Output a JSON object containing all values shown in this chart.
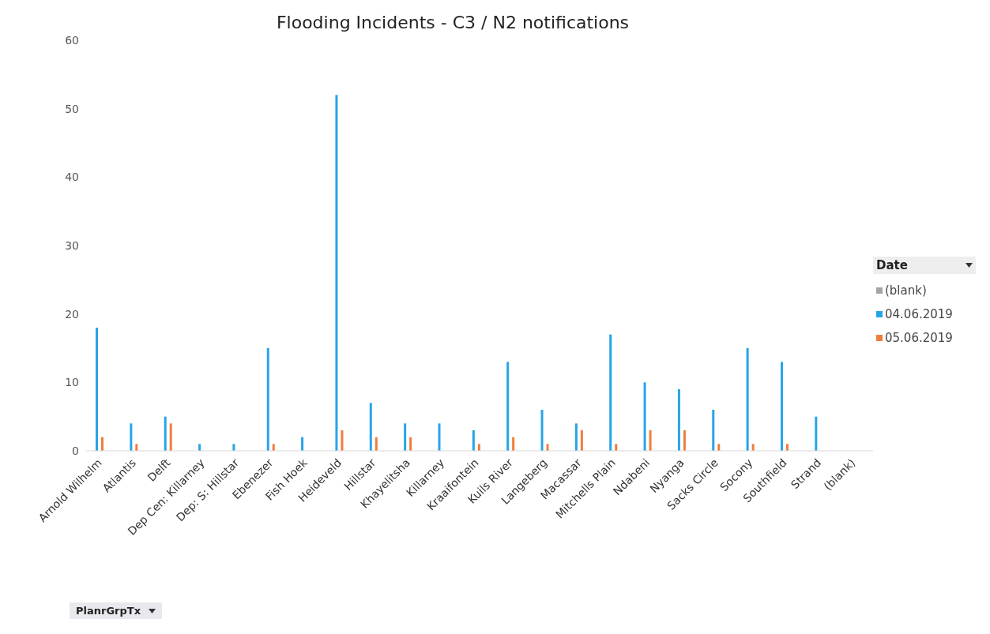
{
  "chart_data": {
    "type": "bar",
    "title": "Flooding Incidents - C3 / N2 notifications",
    "categories": [
      "Arnold Wilhelm",
      "Atlantis",
      "Delft",
      "Dep Cen: Killarney",
      "Dep: S: Hillstar",
      "Ebenezer",
      "Fish Hoek",
      "Heideveld",
      "Hillstar",
      "Khayelitsha",
      "Killarney",
      "Kraaifontein",
      "Kuils River",
      "Langeberg",
      "Macassar",
      "Mitchells Plain",
      "Ndabeni",
      "Nyanga",
      "Sacks Circle",
      "Socony",
      "Southfield",
      "Strand",
      "(blank)"
    ],
    "series": [
      {
        "name": "04.06.2019",
        "color": "#27a4e8",
        "values": [
          18,
          4,
          5,
          1,
          1,
          15,
          2,
          52,
          7,
          4,
          4,
          3,
          13,
          6,
          4,
          17,
          10,
          9,
          6,
          15,
          13,
          5,
          null
        ]
      },
      {
        "name": "05.06.2019",
        "color": "#f07d3c",
        "values": [
          2,
          1,
          4,
          null,
          null,
          1,
          null,
          3,
          2,
          2,
          null,
          1,
          2,
          1,
          3,
          1,
          3,
          3,
          1,
          1,
          1,
          null,
          null
        ]
      },
      {
        "name": "(blank)",
        "color": "#a5a5a5",
        "values": [
          null,
          null,
          null,
          null,
          null,
          null,
          null,
          null,
          null,
          null,
          null,
          null,
          null,
          null,
          null,
          null,
          null,
          null,
          null,
          null,
          null,
          null,
          null
        ]
      }
    ],
    "ylim": [
      0,
      60
    ],
    "yticks": [
      0,
      10,
      20,
      30,
      40,
      50,
      60
    ],
    "grid": false,
    "legend": "right",
    "legend_title": "Date",
    "annotations": [
      "PlanrGrpTx"
    ]
  }
}
